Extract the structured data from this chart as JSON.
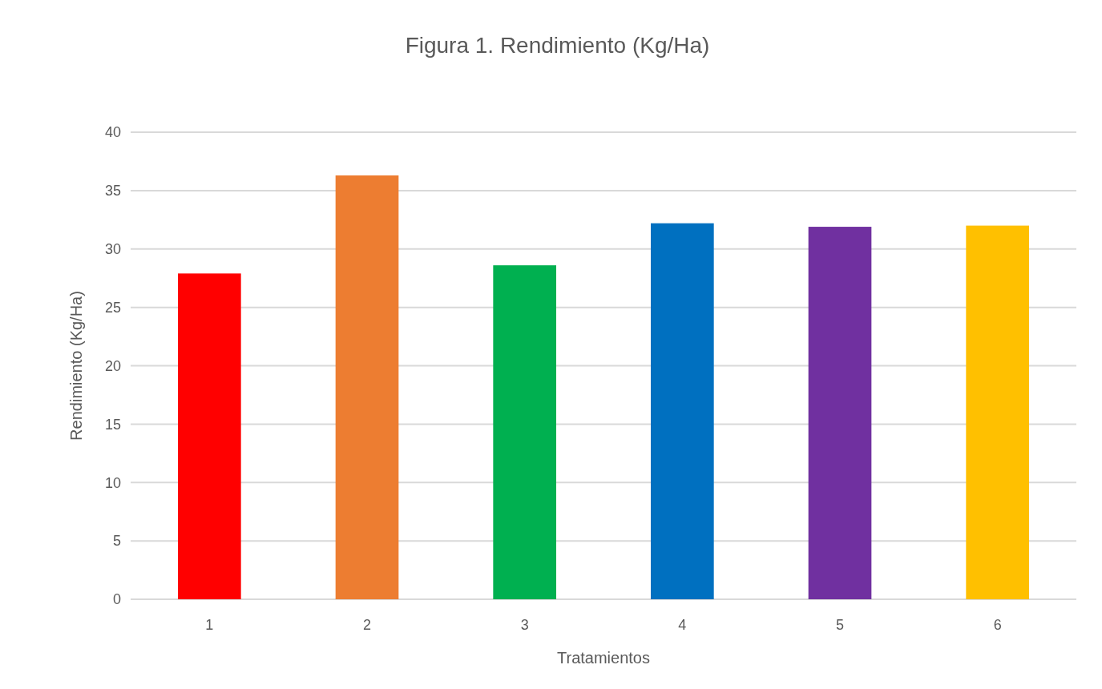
{
  "chart_data": {
    "type": "bar",
    "title": "Figura 1. Rendimiento (Kg/Ha)",
    "xlabel": "Tratamientos",
    "ylabel": "Rendimiento (Kg/Ha)",
    "categories": [
      "1",
      "2",
      "3",
      "4",
      "5",
      "6"
    ],
    "values": [
      27.9,
      36.3,
      28.6,
      32.2,
      31.9,
      32.0
    ],
    "colors": [
      "#ff0000",
      "#ed7d31",
      "#00b050",
      "#0070c0",
      "#7030a0",
      "#ffc000"
    ],
    "ylim": [
      0,
      40
    ],
    "yticks": [
      0,
      5,
      10,
      15,
      20,
      25,
      30,
      35,
      40
    ],
    "grid": "y"
  }
}
